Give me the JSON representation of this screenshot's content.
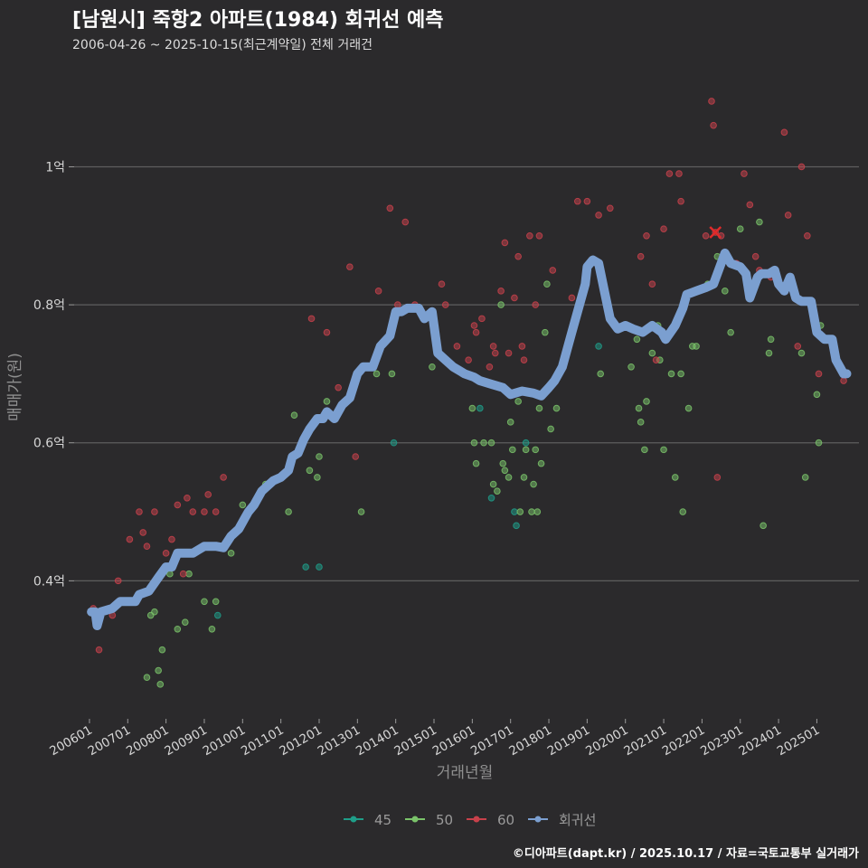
{
  "header": {
    "title": "[남원시] 죽항2 아파트(1984) 회귀선 예측",
    "subtitle": "2006-04-26 ~ 2025-10-15(최근계약일) 전체 거래건"
  },
  "caption": "©디아파트(dapt.kr) / 2025.10.17 / 자료=국토교통부 실거래가",
  "colors": {
    "background": "#2b2a2c",
    "grid": "#5e5e5e",
    "s45": "#1f9e89",
    "s50": "#7ac36a",
    "s60": "#c8414b",
    "regression": "#7b9fd0"
  },
  "chart_data": {
    "type": "scatter",
    "title": "[남원시] 죽항2 아파트(1984) 회귀선 예측",
    "xlabel": "거래년월",
    "ylabel": "매매가(원)",
    "xlim": [
      2005.6,
      2026.1
    ],
    "ylim": [
      0.2,
      1.15
    ],
    "y_ticks": [
      0.4,
      0.6,
      0.8,
      1.0
    ],
    "y_tick_labels": [
      "0.4억",
      "0.6억",
      "0.8억",
      "1억"
    ],
    "x_ticks": [
      2006,
      2007,
      2008,
      2009,
      2010,
      2011,
      2012,
      2013,
      2014,
      2015,
      2016,
      2017,
      2018,
      2019,
      2020,
      2021,
      2022,
      2023,
      2024,
      2025
    ],
    "x_tick_labels": [
      "200601",
      "200701",
      "200801",
      "200901",
      "201001",
      "201101",
      "201201",
      "201301",
      "201401",
      "201501",
      "201601",
      "201701",
      "201801",
      "201901",
      "202001",
      "202101",
      "202201",
      "202301",
      "202401",
      "202501"
    ],
    "legend": {
      "position": "bottom",
      "entries": [
        {
          "key": "s45",
          "label": "45"
        },
        {
          "key": "s50",
          "label": "50"
        },
        {
          "key": "s60",
          "label": "60"
        },
        {
          "key": "regression",
          "label": "회귀선"
        }
      ]
    },
    "series": [
      {
        "name": "45",
        "key": "s45",
        "points": [
          [
            2009.35,
            0.35
          ],
          [
            2011.65,
            0.42
          ],
          [
            2012.0,
            0.42
          ],
          [
            2013.95,
            0.6
          ],
          [
            2016.2,
            0.65
          ],
          [
            2016.5,
            0.52
          ],
          [
            2017.1,
            0.5
          ],
          [
            2017.15,
            0.48
          ],
          [
            2017.4,
            0.6
          ],
          [
            2019.3,
            0.74
          ]
        ]
      },
      {
        "name": "50",
        "key": "s50",
        "points": [
          [
            2007.5,
            0.26
          ],
          [
            2007.6,
            0.35
          ],
          [
            2007.7,
            0.355
          ],
          [
            2007.8,
            0.27
          ],
          [
            2007.85,
            0.25
          ],
          [
            2007.9,
            0.3
          ],
          [
            2008.1,
            0.41
          ],
          [
            2008.3,
            0.33
          ],
          [
            2008.5,
            0.34
          ],
          [
            2008.6,
            0.41
          ],
          [
            2009.0,
            0.37
          ],
          [
            2009.2,
            0.33
          ],
          [
            2009.3,
            0.37
          ],
          [
            2009.7,
            0.44
          ],
          [
            2010.0,
            0.51
          ],
          [
            2010.6,
            0.54
          ],
          [
            2011.2,
            0.5
          ],
          [
            2011.35,
            0.64
          ],
          [
            2011.75,
            0.56
          ],
          [
            2011.95,
            0.55
          ],
          [
            2012.0,
            0.58
          ],
          [
            2012.2,
            0.66
          ],
          [
            2013.1,
            0.5
          ],
          [
            2013.5,
            0.7
          ],
          [
            2013.9,
            0.7
          ],
          [
            2014.95,
            0.71
          ],
          [
            2016.0,
            0.65
          ],
          [
            2016.05,
            0.6
          ],
          [
            2016.1,
            0.57
          ],
          [
            2016.3,
            0.6
          ],
          [
            2016.5,
            0.6
          ],
          [
            2016.55,
            0.54
          ],
          [
            2016.65,
            0.53
          ],
          [
            2016.75,
            0.8
          ],
          [
            2016.8,
            0.57
          ],
          [
            2016.85,
            0.56
          ],
          [
            2016.95,
            0.55
          ],
          [
            2017.0,
            0.63
          ],
          [
            2017.05,
            0.59
          ],
          [
            2017.2,
            0.66
          ],
          [
            2017.25,
            0.5
          ],
          [
            2017.35,
            0.55
          ],
          [
            2017.4,
            0.59
          ],
          [
            2017.55,
            0.5
          ],
          [
            2017.6,
            0.54
          ],
          [
            2017.65,
            0.59
          ],
          [
            2017.7,
            0.5
          ],
          [
            2017.75,
            0.65
          ],
          [
            2017.8,
            0.57
          ],
          [
            2017.9,
            0.76
          ],
          [
            2017.95,
            0.83
          ],
          [
            2018.05,
            0.62
          ],
          [
            2018.2,
            0.65
          ],
          [
            2019.35,
            0.7
          ],
          [
            2020.15,
            0.71
          ],
          [
            2020.35,
            0.65
          ],
          [
            2020.4,
            0.63
          ],
          [
            2020.5,
            0.59
          ],
          [
            2020.55,
            0.66
          ],
          [
            2020.7,
            0.73
          ],
          [
            2020.85,
            0.77
          ],
          [
            2020.9,
            0.72
          ],
          [
            2021.0,
            0.59
          ],
          [
            2021.2,
            0.7
          ],
          [
            2021.3,
            0.55
          ],
          [
            2021.45,
            0.7
          ],
          [
            2021.5,
            0.5
          ],
          [
            2021.65,
            0.65
          ],
          [
            2021.75,
            0.74
          ],
          [
            2021.85,
            0.74
          ],
          [
            2022.15,
            0.83
          ],
          [
            2022.4,
            0.87
          ],
          [
            2022.6,
            0.82
          ],
          [
            2022.75,
            0.76
          ],
          [
            2023.0,
            0.91
          ],
          [
            2023.5,
            0.92
          ],
          [
            2023.6,
            0.48
          ],
          [
            2023.75,
            0.73
          ],
          [
            2023.8,
            0.75
          ],
          [
            2024.6,
            0.73
          ],
          [
            2024.7,
            0.55
          ],
          [
            2025.0,
            0.67
          ],
          [
            2025.05,
            0.6
          ],
          [
            2025.1,
            0.77
          ],
          [
            2020.3,
            0.75
          ]
        ]
      },
      {
        "name": "60",
        "key": "s60",
        "points": [
          [
            2006.1,
            0.36
          ],
          [
            2006.25,
            0.3
          ],
          [
            2006.6,
            0.35
          ],
          [
            2006.75,
            0.4
          ],
          [
            2007.05,
            0.46
          ],
          [
            2007.3,
            0.5
          ],
          [
            2007.4,
            0.47
          ],
          [
            2007.5,
            0.45
          ],
          [
            2007.7,
            0.5
          ],
          [
            2008.0,
            0.44
          ],
          [
            2008.15,
            0.46
          ],
          [
            2008.3,
            0.51
          ],
          [
            2008.45,
            0.41
          ],
          [
            2008.55,
            0.52
          ],
          [
            2008.7,
            0.5
          ],
          [
            2009.0,
            0.5
          ],
          [
            2009.1,
            0.525
          ],
          [
            2009.3,
            0.5
          ],
          [
            2009.5,
            0.55
          ],
          [
            2011.8,
            0.78
          ],
          [
            2012.2,
            0.76
          ],
          [
            2012.5,
            0.68
          ],
          [
            2012.8,
            0.855
          ],
          [
            2012.95,
            0.58
          ],
          [
            2013.55,
            0.82
          ],
          [
            2013.85,
            0.94
          ],
          [
            2014.05,
            0.8
          ],
          [
            2014.25,
            0.92
          ],
          [
            2014.5,
            0.8
          ],
          [
            2014.75,
            0.78
          ],
          [
            2015.2,
            0.83
          ],
          [
            2015.3,
            0.8
          ],
          [
            2015.6,
            0.74
          ],
          [
            2015.9,
            0.72
          ],
          [
            2016.05,
            0.77
          ],
          [
            2016.1,
            0.76
          ],
          [
            2016.25,
            0.78
          ],
          [
            2016.45,
            0.71
          ],
          [
            2016.55,
            0.74
          ],
          [
            2016.6,
            0.73
          ],
          [
            2016.75,
            0.82
          ],
          [
            2016.85,
            0.89
          ],
          [
            2016.95,
            0.73
          ],
          [
            2017.1,
            0.81
          ],
          [
            2017.2,
            0.87
          ],
          [
            2017.3,
            0.74
          ],
          [
            2017.35,
            0.72
          ],
          [
            2017.5,
            0.9
          ],
          [
            2017.65,
            0.8
          ],
          [
            2017.75,
            0.9
          ],
          [
            2018.1,
            0.85
          ],
          [
            2018.6,
            0.81
          ],
          [
            2018.75,
            0.95
          ],
          [
            2019.0,
            0.95
          ],
          [
            2019.3,
            0.93
          ],
          [
            2019.6,
            0.94
          ],
          [
            2020.4,
            0.87
          ],
          [
            2020.55,
            0.9
          ],
          [
            2020.7,
            0.83
          ],
          [
            2020.8,
            0.72
          ],
          [
            2021.0,
            0.91
          ],
          [
            2021.15,
            0.99
          ],
          [
            2021.4,
            0.99
          ],
          [
            2021.45,
            0.95
          ],
          [
            2022.1,
            0.9
          ],
          [
            2022.25,
            1.095
          ],
          [
            2022.3,
            1.06
          ],
          [
            2022.35,
            0.905
          ],
          [
            2022.4,
            0.55
          ],
          [
            2022.5,
            0.9
          ],
          [
            2022.9,
            0.86
          ],
          [
            2023.1,
            0.99
          ],
          [
            2023.25,
            0.945
          ],
          [
            2023.4,
            0.87
          ],
          [
            2023.5,
            0.85
          ],
          [
            2023.8,
            0.84
          ],
          [
            2024.15,
            1.05
          ],
          [
            2024.25,
            0.93
          ],
          [
            2024.5,
            0.74
          ],
          [
            2024.6,
            1.0
          ],
          [
            2024.75,
            0.9
          ],
          [
            2025.05,
            0.7
          ],
          [
            2025.7,
            0.69
          ]
        ]
      }
    ],
    "regression": {
      "name": "회귀선",
      "points": [
        [
          2006.05,
          0.355
        ],
        [
          2006.15,
          0.355
        ],
        [
          2006.2,
          0.335
        ],
        [
          2006.3,
          0.355
        ],
        [
          2006.6,
          0.36
        ],
        [
          2006.8,
          0.37
        ],
        [
          2007.2,
          0.37
        ],
        [
          2007.3,
          0.38
        ],
        [
          2007.55,
          0.385
        ],
        [
          2007.8,
          0.405
        ],
        [
          2008.0,
          0.42
        ],
        [
          2008.15,
          0.42
        ],
        [
          2008.3,
          0.44
        ],
        [
          2008.7,
          0.44
        ],
        [
          2008.85,
          0.445
        ],
        [
          2009.0,
          0.45
        ],
        [
          2009.3,
          0.45
        ],
        [
          2009.5,
          0.448
        ],
        [
          2009.7,
          0.465
        ],
        [
          2009.9,
          0.475
        ],
        [
          2010.05,
          0.49
        ],
        [
          2010.15,
          0.5
        ],
        [
          2010.3,
          0.51
        ],
        [
          2010.5,
          0.53
        ],
        [
          2010.8,
          0.545
        ],
        [
          2011.0,
          0.55
        ],
        [
          2011.2,
          0.56
        ],
        [
          2011.3,
          0.58
        ],
        [
          2011.45,
          0.585
        ],
        [
          2011.6,
          0.605
        ],
        [
          2011.75,
          0.62
        ],
        [
          2011.95,
          0.635
        ],
        [
          2012.1,
          0.635
        ],
        [
          2012.2,
          0.645
        ],
        [
          2012.4,
          0.635
        ],
        [
          2012.6,
          0.655
        ],
        [
          2012.8,
          0.665
        ],
        [
          2013.0,
          0.7
        ],
        [
          2013.15,
          0.71
        ],
        [
          2013.4,
          0.71
        ],
        [
          2013.6,
          0.74
        ],
        [
          2013.85,
          0.755
        ],
        [
          2014.0,
          0.79
        ],
        [
          2014.15,
          0.79
        ],
        [
          2014.3,
          0.795
        ],
        [
          2014.6,
          0.795
        ],
        [
          2014.75,
          0.78
        ],
        [
          2014.95,
          0.79
        ],
        [
          2015.1,
          0.73
        ],
        [
          2015.3,
          0.72
        ],
        [
          2015.5,
          0.71
        ],
        [
          2015.8,
          0.7
        ],
        [
          2016.05,
          0.695
        ],
        [
          2016.2,
          0.69
        ],
        [
          2016.5,
          0.685
        ],
        [
          2016.8,
          0.68
        ],
        [
          2017.0,
          0.67
        ],
        [
          2017.3,
          0.675
        ],
        [
          2017.6,
          0.672
        ],
        [
          2017.8,
          0.668
        ],
        [
          2018.0,
          0.68
        ],
        [
          2018.15,
          0.69
        ],
        [
          2018.35,
          0.71
        ],
        [
          2018.6,
          0.76
        ],
        [
          2018.8,
          0.8
        ],
        [
          2018.95,
          0.83
        ],
        [
          2019.0,
          0.855
        ],
        [
          2019.15,
          0.865
        ],
        [
          2019.3,
          0.86
        ],
        [
          2019.45,
          0.82
        ],
        [
          2019.6,
          0.78
        ],
        [
          2019.8,
          0.765
        ],
        [
          2020.0,
          0.77
        ],
        [
          2020.2,
          0.765
        ],
        [
          2020.45,
          0.76
        ],
        [
          2020.7,
          0.77
        ],
        [
          2020.95,
          0.76
        ],
        [
          2021.05,
          0.75
        ],
        [
          2021.3,
          0.77
        ],
        [
          2021.5,
          0.795
        ],
        [
          2021.6,
          0.815
        ],
        [
          2021.85,
          0.82
        ],
        [
          2022.1,
          0.825
        ],
        [
          2022.3,
          0.83
        ],
        [
          2022.5,
          0.86
        ],
        [
          2022.6,
          0.875
        ],
        [
          2022.75,
          0.86
        ],
        [
          2023.0,
          0.855
        ],
        [
          2023.15,
          0.845
        ],
        [
          2023.25,
          0.81
        ],
        [
          2023.45,
          0.84
        ],
        [
          2023.55,
          0.845
        ],
        [
          2023.75,
          0.845
        ],
        [
          2023.9,
          0.85
        ],
        [
          2024.0,
          0.83
        ],
        [
          2024.15,
          0.82
        ],
        [
          2024.3,
          0.84
        ],
        [
          2024.45,
          0.81
        ],
        [
          2024.6,
          0.805
        ],
        [
          2024.85,
          0.805
        ],
        [
          2025.0,
          0.76
        ],
        [
          2025.2,
          0.75
        ],
        [
          2025.4,
          0.75
        ],
        [
          2025.5,
          0.72
        ],
        [
          2025.7,
          0.7
        ],
        [
          2025.78,
          0.7
        ]
      ]
    },
    "annotations": [
      {
        "type": "x-marker",
        "x": 2022.35,
        "y": 0.905,
        "series": "60"
      }
    ]
  }
}
